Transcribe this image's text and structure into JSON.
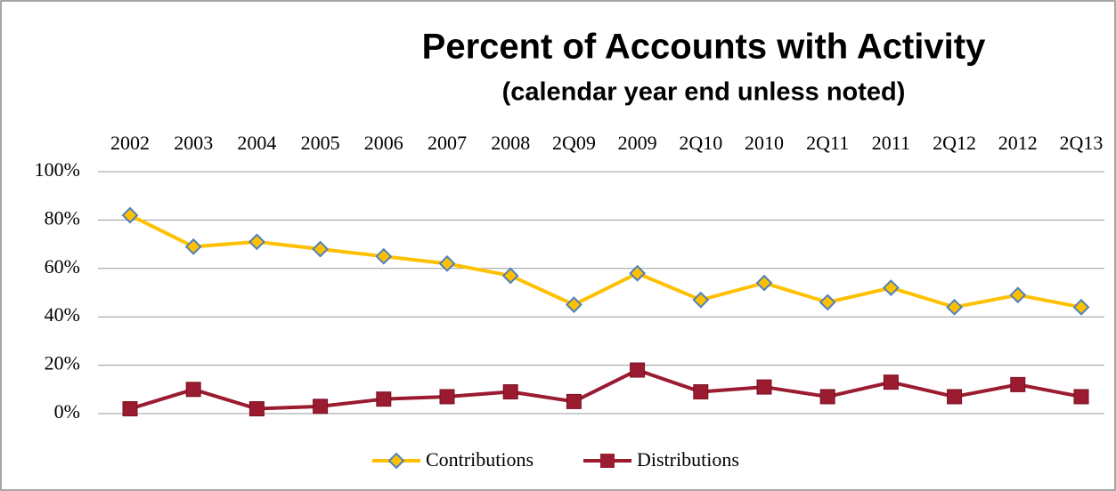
{
  "chart_data": {
    "type": "line",
    "title": "Percent of Accounts with Activity",
    "subtitle": "(calendar year end unless noted)",
    "categories": [
      "2002",
      "2003",
      "2004",
      "2005",
      "2006",
      "2007",
      "2008",
      "2Q09",
      "2009",
      "2Q10",
      "2010",
      "2Q11",
      "2011",
      "2Q12",
      "2012",
      "2Q13"
    ],
    "series": [
      {
        "name": "Contributions",
        "color": "#FFC000",
        "values": [
          82,
          69,
          71,
          68,
          65,
          62,
          57,
          45,
          58,
          47,
          54,
          46,
          52,
          44,
          49,
          44
        ]
      },
      {
        "name": "Distributions",
        "color": "#9B1B30",
        "values": [
          2,
          10,
          2,
          3,
          6,
          7,
          9,
          5,
          18,
          9,
          11,
          7,
          13,
          7,
          12,
          7
        ]
      }
    ],
    "ylim": [
      0,
      100
    ],
    "yticks": [
      {
        "value": 0,
        "label": "0%"
      },
      {
        "value": 20,
        "label": "20%"
      },
      {
        "value": 40,
        "label": "40%"
      },
      {
        "value": 60,
        "label": "60%"
      },
      {
        "value": 80,
        "label": "80%"
      },
      {
        "value": 100,
        "label": "100%"
      }
    ],
    "grid": true,
    "legend": "bottom"
  }
}
